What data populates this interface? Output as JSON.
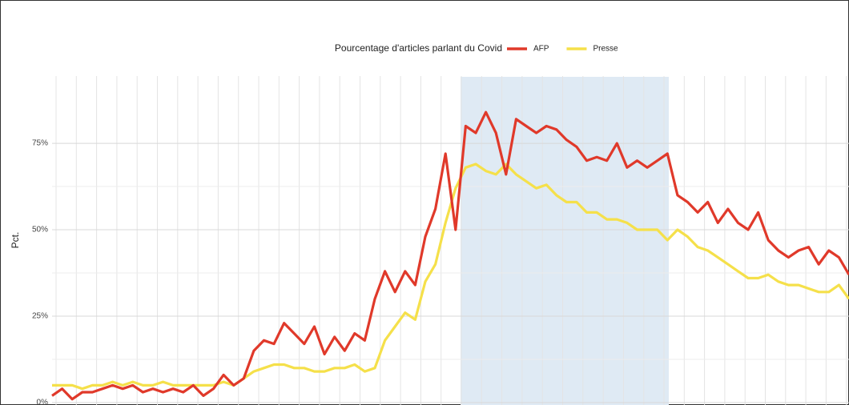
{
  "chart_data": {
    "type": "line",
    "legend_title": "Pourcentage d'articles parlant du Covid",
    "y_label": "Pct.",
    "categories": [
      null,
      null,
      null,
      null,
      null,
      null,
      null,
      null,
      null,
      null,
      null,
      null,
      null,
      null,
      null,
      null,
      null,
      null,
      null,
      null,
      null,
      null,
      null,
      null,
      null,
      null,
      null,
      null,
      null,
      null,
      null,
      null,
      null,
      null,
      null,
      null,
      null,
      null,
      null,
      null,
      null,
      null,
      null,
      null,
      null,
      null,
      null,
      null,
      null,
      null,
      null,
      null,
      null,
      null,
      null,
      null,
      null,
      null,
      null,
      null,
      null,
      null,
      null,
      null,
      null,
      null,
      null,
      null,
      null,
      null,
      null,
      null,
      null,
      null,
      null,
      null,
      null,
      null,
      null,
      null
    ],
    "series": [
      {
        "name": "AFP",
        "color": "#e0392a",
        "values": [
          2,
          4,
          1,
          3,
          3,
          4,
          5,
          4,
          5,
          3,
          4,
          3,
          4,
          3,
          5,
          2,
          4,
          8,
          5,
          7,
          15,
          18,
          17,
          23,
          20,
          17,
          22,
          14,
          19,
          15,
          20,
          18,
          30,
          38,
          32,
          38,
          34,
          48,
          56,
          72,
          50,
          80,
          78,
          84,
          78,
          66,
          82,
          80,
          78,
          80,
          79,
          76,
          74,
          70,
          71,
          70,
          75,
          68,
          70,
          68,
          70,
          72,
          60,
          58,
          55,
          58,
          52,
          56,
          52,
          50,
          55,
          47,
          44,
          42,
          44,
          45,
          40,
          44,
          42,
          37
        ]
      },
      {
        "name": "Presse",
        "color": "#f5e04a",
        "values": [
          5,
          5,
          5,
          4,
          5,
          5,
          6,
          5,
          6,
          5,
          5,
          6,
          5,
          5,
          5,
          5,
          5,
          6,
          5,
          7,
          9,
          10,
          11,
          11,
          10,
          10,
          9,
          9,
          10,
          10,
          11,
          9,
          10,
          18,
          22,
          26,
          24,
          35,
          40,
          52,
          62,
          68,
          69,
          67,
          66,
          69,
          66,
          64,
          62,
          63,
          60,
          58,
          58,
          55,
          55,
          53,
          53,
          52,
          50,
          50,
          50,
          47,
          50,
          48,
          45,
          44,
          42,
          40,
          38,
          36,
          36,
          37,
          35,
          34,
          34,
          33,
          32,
          32,
          34,
          30
        ]
      }
    ],
    "ylim": [
      0,
      94
    ],
    "yticks": [
      {
        "value": 0,
        "label": "0%"
      },
      {
        "value": 25,
        "label": "25%"
      },
      {
        "value": 50,
        "label": "50%"
      },
      {
        "value": 75,
        "label": "75%"
      }
    ],
    "grid": true,
    "legend": "top"
  }
}
